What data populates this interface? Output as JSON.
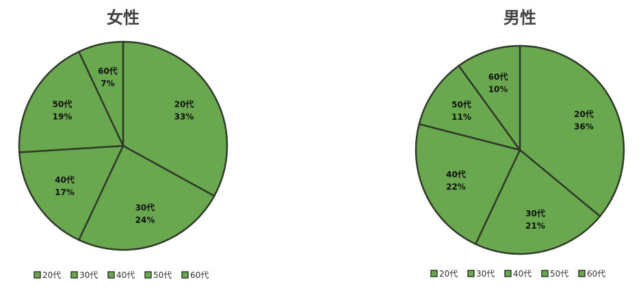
{
  "chart_data": [
    {
      "type": "pie",
      "title": "女性",
      "categories": [
        "20代",
        "30代",
        "40代",
        "50代",
        "60代"
      ],
      "values": [
        33,
        24,
        17,
        19,
        7
      ],
      "value_labels": [
        "33%",
        "24%",
        "17%",
        "19%",
        "7%"
      ],
      "legend": [
        "20代",
        "30代",
        "40代",
        "50代",
        "60代"
      ],
      "legend_position": "bottom",
      "start_angle_deg": 0,
      "direction": "clockwise"
    },
    {
      "type": "pie",
      "title": "男性",
      "categories": [
        "20代",
        "30代",
        "40代",
        "50代",
        "60代"
      ],
      "values": [
        36,
        21,
        22,
        11,
        10
      ],
      "value_labels": [
        "36%",
        "21%",
        "22%",
        "11%",
        "10%"
      ],
      "legend": [
        "20代",
        "30代",
        "40代",
        "50代",
        "60代"
      ],
      "legend_position": "bottom",
      "start_angle_deg": 0,
      "direction": "clockwise"
    }
  ],
  "colors": {
    "slice_fill": "#6aa84f",
    "slice_stroke": "#2f3b28",
    "title": "#404040"
  }
}
